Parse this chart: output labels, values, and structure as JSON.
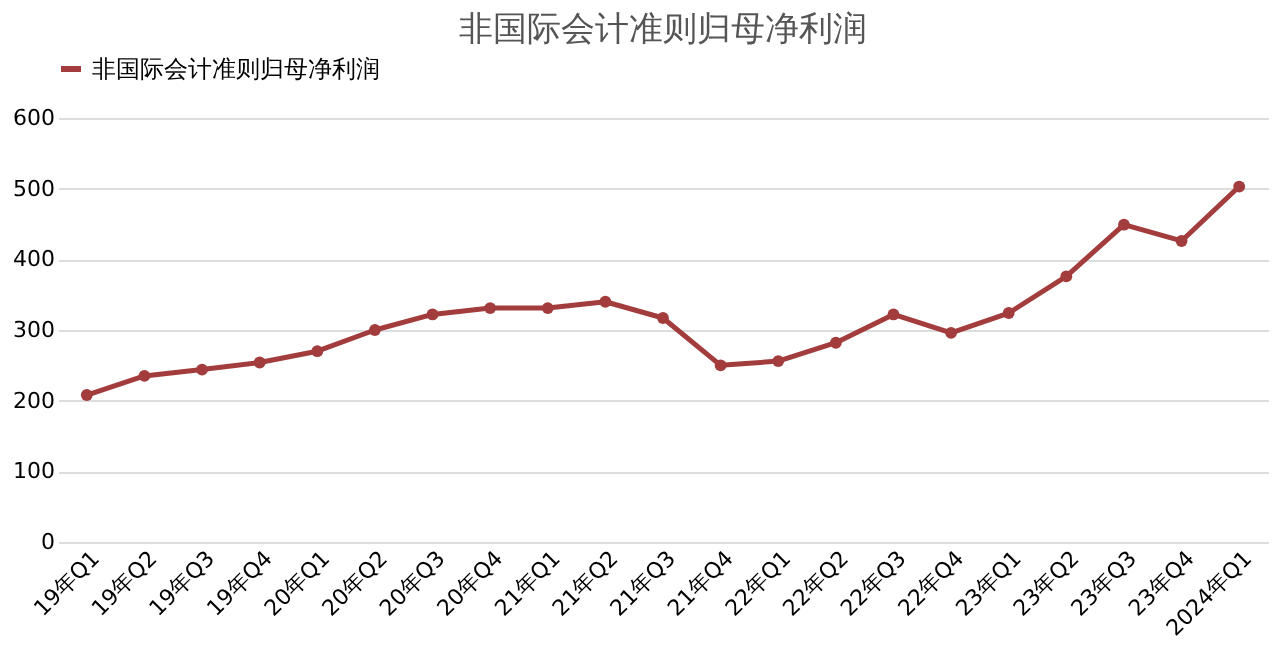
{
  "chart_data": {
    "type": "line",
    "title": "非国际会计准则归母净利润",
    "categories": [
      "19年Q1",
      "19年Q2",
      "19年Q3",
      "19年Q4",
      "20年Q1",
      "20年Q2",
      "20年Q3",
      "20年Q4",
      "21年Q1",
      "21年Q2",
      "21年Q3",
      "21年Q4",
      "22年Q1",
      "22年Q2",
      "22年Q3",
      "22年Q4",
      "23年Q1",
      "23年Q2",
      "23年Q3",
      "23年Q4",
      "2024年Q1"
    ],
    "series": [
      {
        "name": "非国际会计准则归母净利润",
        "color": "#a33c3c",
        "values": [
          208,
          235,
          244,
          254,
          270,
          300,
          322,
          331,
          331,
          340,
          317,
          250,
          256,
          282,
          322,
          296,
          324,
          376,
          449,
          426,
          503
        ]
      }
    ],
    "ylim": [
      0,
      600
    ],
    "yticks": [
      0,
      100,
      200,
      300,
      400,
      500,
      600
    ],
    "grid": "y",
    "legend": "top",
    "marker": "circle",
    "line_style": "solid"
  }
}
